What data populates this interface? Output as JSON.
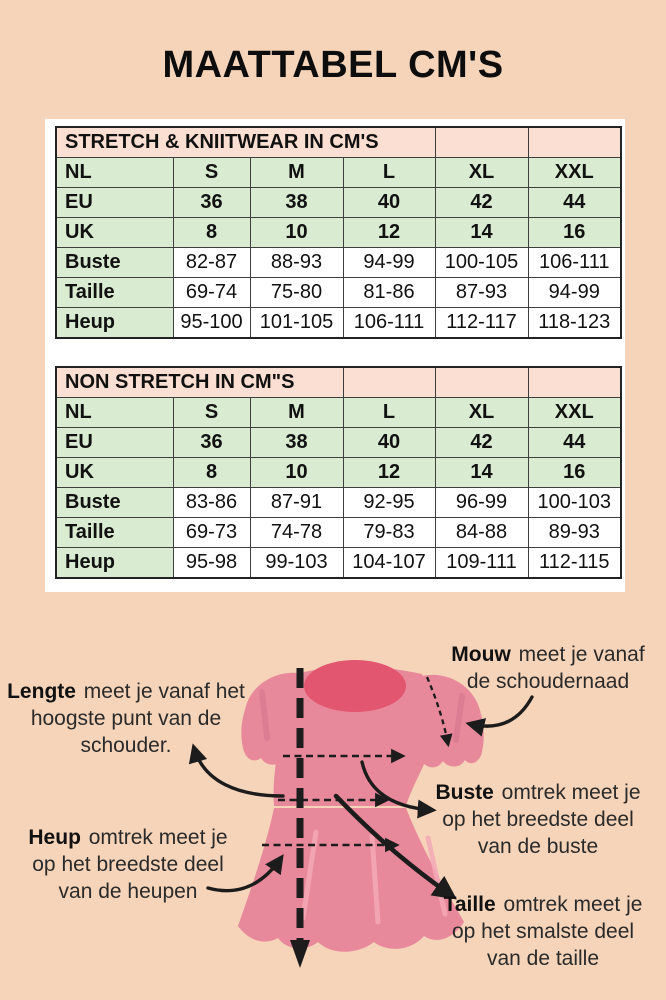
{
  "page": {
    "title": "MAATTABEL CM'S"
  },
  "colors": {
    "bg": "#f6d4b9",
    "cell_pink": "#fbdfd2",
    "cell_green": "#d9ecd2",
    "border": "#3f3f3f",
    "ink": "#1c1c1c",
    "dress": "#e8899b",
    "neckline": "#e2566f",
    "text": "#2a2a2a"
  },
  "tables": [
    {
      "title": "STRETCH & KNIITWEAR IN CM'S",
      "title_colspan": 4,
      "size_rows": [
        {
          "label": "NL",
          "values": [
            "S",
            "M",
            "L",
            "XL",
            "XXL"
          ]
        },
        {
          "label": "EU",
          "values": [
            "36",
            "38",
            "40",
            "42",
            "44"
          ]
        },
        {
          "label": "UK",
          "values": [
            "8",
            "10",
            "12",
            "14",
            "16"
          ]
        }
      ],
      "measure_rows": [
        {
          "label": "Buste",
          "values": [
            "82-87",
            "88-93",
            "94-99",
            "100-105",
            "106-111"
          ]
        },
        {
          "label": "Taille",
          "values": [
            "69-74",
            "75-80",
            "81-86",
            "87-93",
            "94-99"
          ]
        },
        {
          "label": "Heup",
          "values": [
            "95-100",
            "101-105",
            "106-111",
            "112-117",
            "118-123"
          ]
        }
      ]
    },
    {
      "title": "NON STRETCH IN CM\"S",
      "title_colspan": 3,
      "size_rows": [
        {
          "label": "NL",
          "values": [
            "S",
            "M",
            "L",
            "XL",
            "XXL"
          ]
        },
        {
          "label": "EU",
          "values": [
            "36",
            "38",
            "40",
            "42",
            "44"
          ]
        },
        {
          "label": "UK",
          "values": [
            "8",
            "10",
            "12",
            "14",
            "16"
          ]
        }
      ],
      "measure_rows": [
        {
          "label": "Buste",
          "values": [
            "83-86",
            "87-91",
            "92-95",
            "96-99",
            "100-103"
          ]
        },
        {
          "label": "Taille",
          "values": [
            "69-73",
            "74-78",
            "79-83",
            "84-88",
            "89-93"
          ]
        },
        {
          "label": "Heup",
          "values": [
            "95-98",
            "99-103",
            "104-107",
            "109-111",
            "112-115"
          ]
        }
      ]
    }
  ],
  "diagram": {
    "annotations": [
      {
        "id": "lengte",
        "lead": "Lengte",
        "after_lead": " meet je vanaf het",
        "extra_lines": [
          "hoogste punt van de",
          "schouder."
        ]
      },
      {
        "id": "mouw",
        "lead": "Mouw",
        "after_lead": " meet je vanaf",
        "extra_lines": [
          "de schoudernaad"
        ]
      },
      {
        "id": "buste",
        "lead": "Buste",
        "after_lead": " omtrek meet je",
        "extra_lines": [
          "op het breedste deel",
          "van de buste"
        ]
      },
      {
        "id": "heup",
        "lead": "Heup",
        "after_lead": " omtrek meet je",
        "extra_lines": [
          "op het breedste deel",
          "van de heupen"
        ]
      },
      {
        "id": "taille",
        "lead": "Taille",
        "after_lead": " omtrek meet je",
        "extra_lines": [
          "op het smalste deel",
          "van de taille"
        ]
      }
    ]
  }
}
